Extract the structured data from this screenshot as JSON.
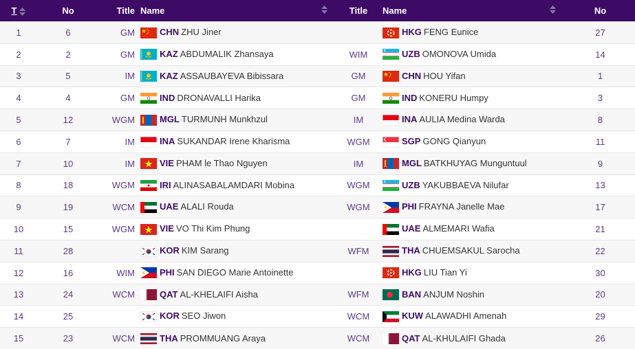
{
  "header": {
    "t": "T",
    "no": "No",
    "title_white": "Title",
    "name_white": "Name",
    "title_black": "Title",
    "name_black": "Name",
    "no_black": "No"
  },
  "rows": [
    {
      "t": "1",
      "no_w": "6",
      "title_w": "GM",
      "fed_w": "CHN",
      "name_w": "ZHU Jiner",
      "flag_w": "china-flag-icon",
      "title_b": "",
      "fed_b": "HKG",
      "name_b": "FENG Eunice",
      "flag_b": "hongkong-flag-icon",
      "no_b": "27"
    },
    {
      "t": "2",
      "no_w": "2",
      "title_w": "GM",
      "fed_w": "KAZ",
      "name_w": "ABDUMALIK Zhansaya",
      "flag_w": "kazakhstan-flag-icon",
      "title_b": "WIM",
      "fed_b": "UZB",
      "name_b": "OMONOVA Umida",
      "flag_b": "uzbekistan-flag-icon",
      "no_b": "14"
    },
    {
      "t": "3",
      "no_w": "5",
      "title_w": "IM",
      "fed_w": "KAZ",
      "name_w": "ASSAUBAYEVA Bibissara",
      "flag_w": "kazakhstan-flag-icon",
      "title_b": "GM",
      "fed_b": "CHN",
      "name_b": "HOU Yifan",
      "flag_b": "china-flag-icon",
      "no_b": "1"
    },
    {
      "t": "4",
      "no_w": "4",
      "title_w": "GM",
      "fed_w": "IND",
      "name_w": "DRONAVALLI Harika",
      "flag_w": "india-flag-icon",
      "title_b": "GM",
      "fed_b": "IND",
      "name_b": "KONERU Humpy",
      "flag_b": "india-flag-icon",
      "no_b": "3"
    },
    {
      "t": "5",
      "no_w": "12",
      "title_w": "WGM",
      "fed_w": "MGL",
      "name_w": "TURMUNH Munkhzul",
      "flag_w": "mongolia-flag-icon",
      "title_b": "IM",
      "fed_b": "INA",
      "name_b": "AULIA Medina Warda",
      "flag_b": "indonesia-flag-icon",
      "no_b": "8"
    },
    {
      "t": "6",
      "no_w": "7",
      "title_w": "IM",
      "fed_w": "INA",
      "name_w": "SUKANDAR Irene Kharisma",
      "flag_w": "indonesia-flag-icon",
      "title_b": "WGM",
      "fed_b": "SGP",
      "name_b": "GONG Qianyun",
      "flag_b": "singapore-flag-icon",
      "no_b": "11"
    },
    {
      "t": "7",
      "no_w": "10",
      "title_w": "IM",
      "fed_w": "VIE",
      "name_w": "PHAM le Thao Nguyen",
      "flag_w": "vietnam-flag-icon",
      "title_b": "IM",
      "fed_b": "MGL",
      "name_b": "BATKHUYAG Munguntuul",
      "flag_b": "mongolia-flag-icon",
      "no_b": "9"
    },
    {
      "t": "8",
      "no_w": "18",
      "title_w": "WGM",
      "fed_w": "IRI",
      "name_w": "ALINASABALAMDARI Mobina",
      "flag_w": "iran-flag-icon",
      "title_b": "WGM",
      "fed_b": "UZB",
      "name_b": "YAKUBBAEVA Nilufar",
      "flag_b": "uzbekistan-flag-icon",
      "no_b": "13"
    },
    {
      "t": "9",
      "no_w": "19",
      "title_w": "WCM",
      "fed_w": "UAE",
      "name_w": "ALALI Rouda",
      "flag_w": "uae-flag-icon",
      "title_b": "WGM",
      "fed_b": "PHI",
      "name_b": "FRAYNA Janelle Mae",
      "flag_b": "philippines-flag-icon",
      "no_b": "17"
    },
    {
      "t": "10",
      "no_w": "15",
      "title_w": "WGM",
      "fed_w": "VIE",
      "name_w": "VO Thi Kim Phung",
      "flag_w": "vietnam-flag-icon",
      "title_b": "",
      "fed_b": "UAE",
      "name_b": "ALMEMARI Wafia",
      "flag_b": "uae-flag-icon",
      "no_b": "21"
    },
    {
      "t": "11",
      "no_w": "28",
      "title_w": "",
      "fed_w": "KOR",
      "name_w": "KIM Sarang",
      "flag_w": "korea-flag-icon",
      "title_b": "WFM",
      "fed_b": "THA",
      "name_b": "CHUEMSAKUL Sarocha",
      "flag_b": "thailand-flag-icon",
      "no_b": "22"
    },
    {
      "t": "12",
      "no_w": "16",
      "title_w": "WIM",
      "fed_w": "PHI",
      "name_w": "SAN DIEGO Marie Antoinette",
      "flag_w": "philippines-flag-icon",
      "title_b": "",
      "fed_b": "HKG",
      "name_b": "LIU Tian Yi",
      "flag_b": "hongkong-flag-icon",
      "no_b": "30"
    },
    {
      "t": "13",
      "no_w": "24",
      "title_w": "WCM",
      "fed_w": "QAT",
      "name_w": "AL-KHELAIFI Aisha",
      "flag_w": "qatar-flag-icon",
      "title_b": "WFM",
      "fed_b": "BAN",
      "name_b": "ANJUM Noshin",
      "flag_b": "bangladesh-flag-icon",
      "no_b": "20"
    },
    {
      "t": "14",
      "no_w": "25",
      "title_w": "",
      "fed_w": "KOR",
      "name_w": "SEO Jiwon",
      "flag_w": "korea-flag-icon",
      "title_b": "WCM",
      "fed_b": "KUW",
      "name_b": "ALAWADHI Amenah",
      "flag_b": "kuwait-flag-icon",
      "no_b": "29"
    },
    {
      "t": "15",
      "no_w": "23",
      "title_w": "WCM",
      "fed_w": "THA",
      "name_w": "PROMMUANG Araya",
      "flag_w": "thailand-flag-icon",
      "title_b": "WCM",
      "fed_b": "QAT",
      "name_b": "AL-KHULAIFI Ghada",
      "flag_b": "qatar-flag-icon",
      "no_b": "26"
    }
  ]
}
